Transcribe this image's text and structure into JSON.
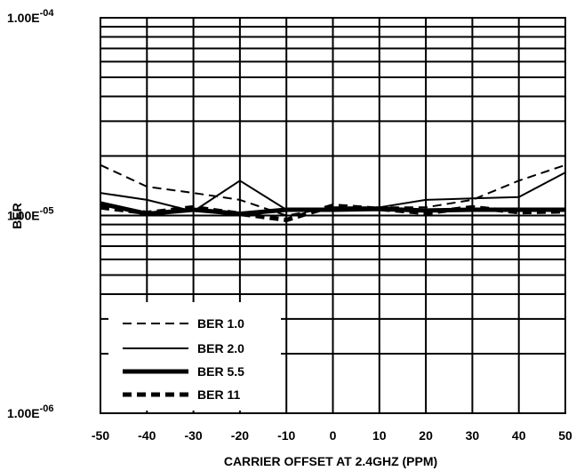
{
  "chart_data": {
    "type": "line",
    "title": "",
    "xlabel": "CARRIER OFFSET AT 2.4GHZ (PPM)",
    "ylabel": "BER",
    "xlim": [
      -50,
      50
    ],
    "ylim": [
      1e-06,
      0.0001
    ],
    "y_scale": "log",
    "grid": true,
    "x_ticks": [
      -50,
      -40,
      -30,
      -20,
      -10,
      0,
      10,
      20,
      30,
      40,
      50
    ],
    "x_tick_labels": [
      "-50",
      "-40",
      "-30",
      "-20",
      "-10",
      "0",
      "10",
      "20",
      "30",
      "40",
      "50"
    ],
    "y_tick_values": [
      1e-06,
      1e-05,
      0.0001
    ],
    "y_tick_base": "1.00E",
    "y_tick_exponents": [
      "-06",
      "-05",
      "-04"
    ],
    "legend_placement": "bottom-left",
    "x": [
      -50,
      -40,
      -30,
      -20,
      -10,
      0,
      10,
      20,
      30,
      40,
      50
    ],
    "series": [
      {
        "name": "BER 1.0",
        "style": "dashed-thin",
        "values": [
          1.8e-05,
          1.4e-05,
          1.3e-05,
          1.2e-05,
          1e-05,
          1.1e-05,
          1.1e-05,
          1.1e-05,
          1.2e-05,
          1.5e-05,
          1.8e-05
        ]
      },
      {
        "name": "BER 2.0",
        "style": "solid-thin",
        "values": [
          1.3e-05,
          1.2e-05,
          1.05e-05,
          1.5e-05,
          1.07e-05,
          1.07e-05,
          1.1e-05,
          1.2e-05,
          1.22e-05,
          1.24e-05,
          1.65e-05
        ]
      },
      {
        "name": "BER 5.5",
        "style": "solid-thick",
        "values": [
          1.15e-05,
          1.02e-05,
          1.07e-05,
          1.02e-05,
          1.07e-05,
          1.07e-05,
          1.08e-05,
          1.06e-05,
          1.07e-05,
          1.07e-05,
          1.07e-05
        ]
      },
      {
        "name": "BER 11",
        "style": "dashed-thick",
        "values": [
          1.1e-05,
          1.03e-05,
          1.1e-05,
          1.02e-05,
          9.5e-06,
          1.12e-05,
          1.08e-05,
          1.03e-05,
          1.1e-05,
          1.04e-05,
          1.05e-05
        ]
      }
    ],
    "colors": {
      "line": "#000000",
      "grid": "#000000",
      "background": "#ffffff"
    }
  }
}
